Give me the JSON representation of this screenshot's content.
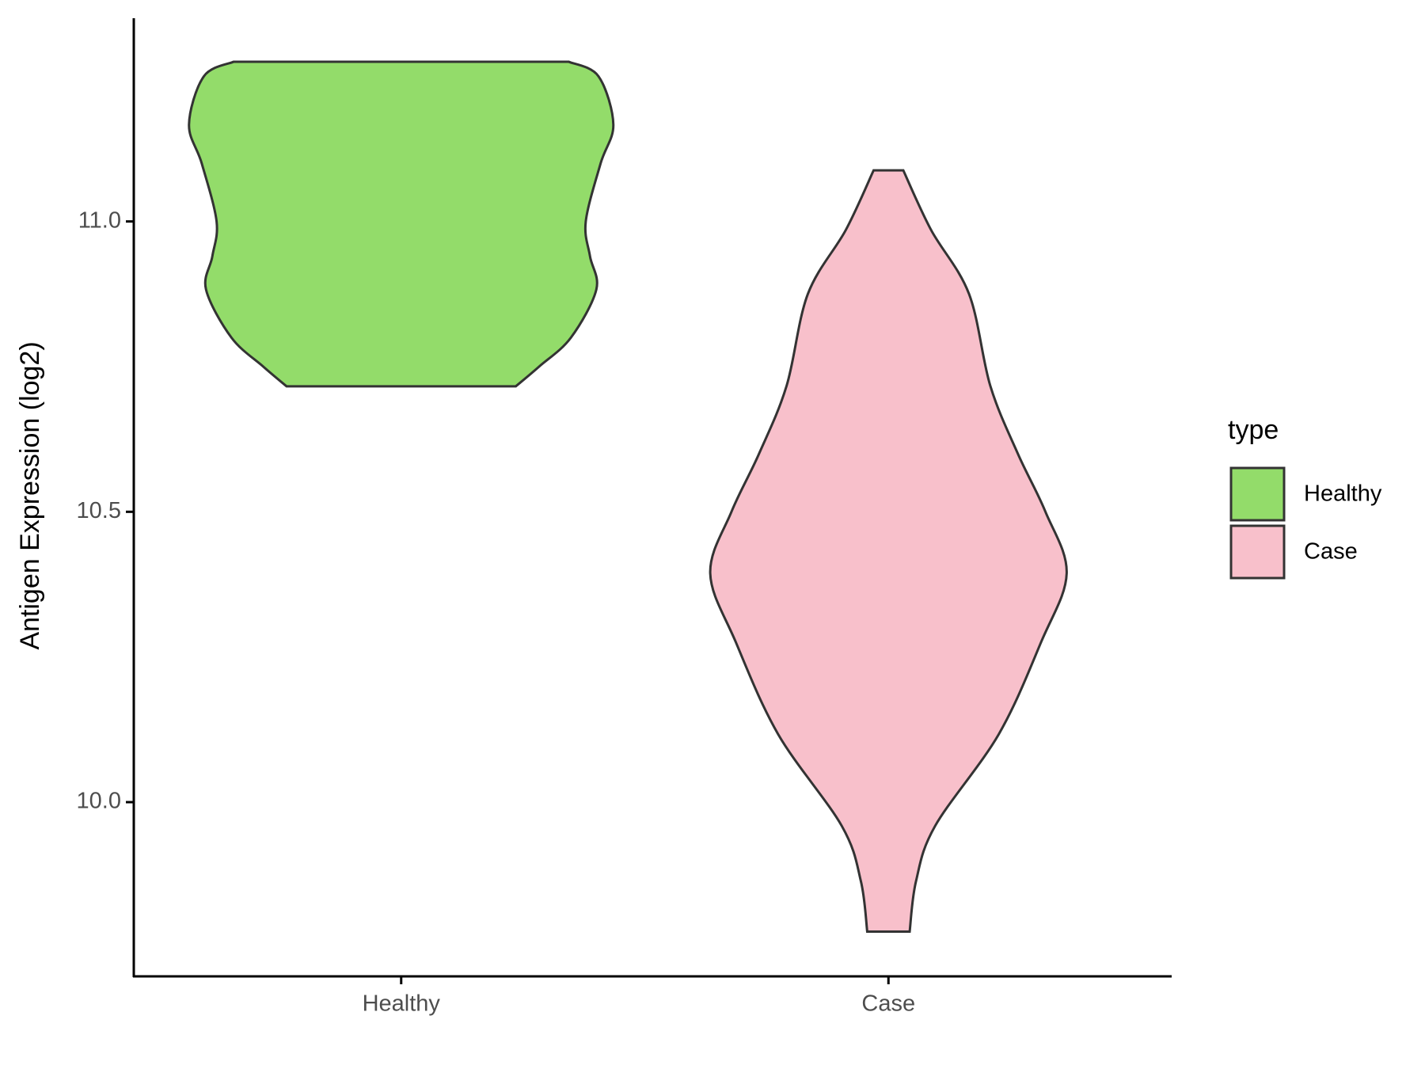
{
  "chart_data": {
    "type": "violin",
    "y_label": "Antigen Expression (log2)",
    "categories": [
      "Healthy",
      "Case"
    ],
    "legend_title": "type",
    "legend": "right",
    "ylim": [
      9.7,
      11.35
    ],
    "yticks": [
      {
        "value": 10,
        "label": "10.0"
      },
      {
        "value": 10.5,
        "label": "10.5"
      },
      {
        "value": 11,
        "label": "11.0"
      }
    ],
    "series": [
      {
        "name": "Healthy",
        "color": "#93dc6a",
        "y": [
          11.275,
          11.25,
          11.167,
          11.1,
          11.0,
          10.94,
          10.883,
          10.8,
          10.75,
          10.716
        ],
        "density": [
          0.79,
          0.93,
          1.0,
          0.94,
          0.87,
          0.89,
          0.92,
          0.8,
          0.65,
          0.54
        ]
      },
      {
        "name": "Case",
        "color": "#f8c0cb",
        "y": [
          11.088,
          10.986,
          10.875,
          10.717,
          10.6,
          10.5,
          10.394,
          10.276,
          10.117,
          9.959,
          9.864,
          9.777
        ],
        "density": [
          0.07,
          0.2,
          0.38,
          0.48,
          0.61,
          0.74,
          0.84,
          0.72,
          0.52,
          0.22,
          0.13,
          0.1
        ]
      }
    ]
  }
}
